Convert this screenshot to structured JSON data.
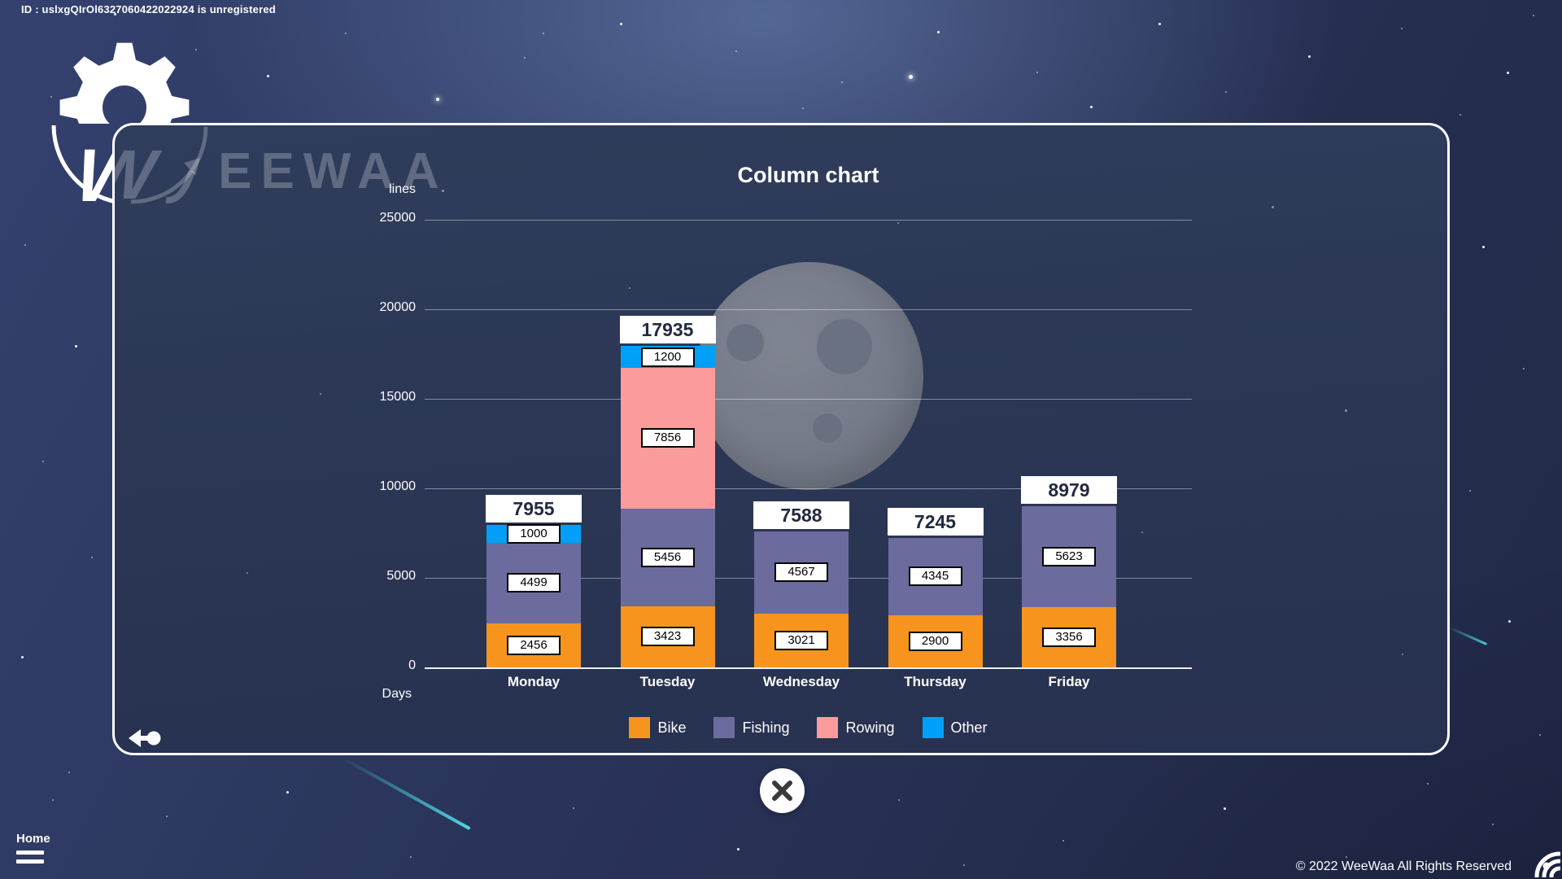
{
  "header": {
    "id_banner": "ID : uslxgQIrOl6327060422022924 is unregistered"
  },
  "logo": {
    "mark": "W",
    "brand": "EEWAA"
  },
  "chart_data": {
    "type": "bar",
    "stacked": true,
    "title": "Column chart",
    "ylabel": "lines",
    "xlabel": "Days",
    "ylim": [
      0,
      25000
    ],
    "ytick_step": 5000,
    "yticks": [
      0,
      5000,
      10000,
      15000,
      20000,
      25000
    ],
    "grid": true,
    "legend_position": "bottom",
    "categories": [
      "Monday",
      "Tuesday",
      "Wednesday",
      "Thursday",
      "Friday"
    ],
    "series": [
      {
        "name": "Bike",
        "color": "#F7941D",
        "values": [
          2456,
          3423,
          3021,
          2900,
          3356
        ]
      },
      {
        "name": "Fishing",
        "color": "#6C6B9D",
        "values": [
          4499,
          5456,
          4567,
          4345,
          5623
        ]
      },
      {
        "name": "Rowing",
        "color": "#FB9B9B",
        "values": [
          0,
          7856,
          0,
          0,
          0
        ]
      },
      {
        "name": "Other",
        "color": "#00A0F8",
        "values": [
          1000,
          1200,
          0,
          0,
          0
        ]
      }
    ],
    "totals": [
      7955,
      17935,
      7588,
      7245,
      8979
    ]
  },
  "footer": {
    "home_label": "Home",
    "copyright": "© 2022 WeeWaa All Rights Reserved"
  }
}
